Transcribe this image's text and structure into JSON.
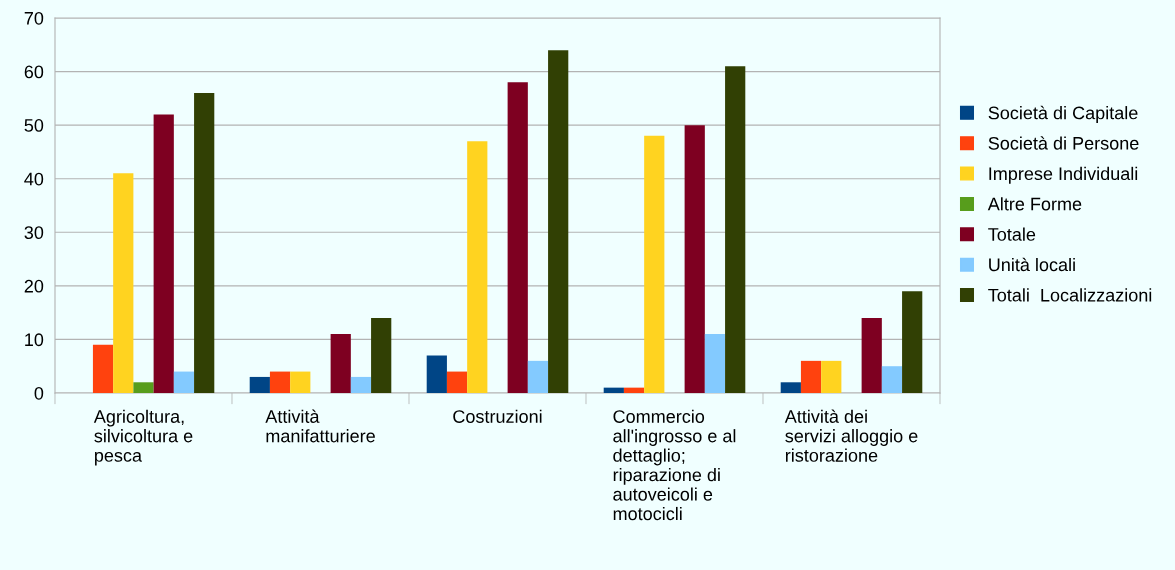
{
  "chart_data": {
    "type": "bar",
    "categories": [
      "Agricoltura,\nsilvicoltura e\npesca",
      "Attività\nmanifatturiere",
      "Costruzioni",
      "Commercio\nall'ingrosso e al\ndettaglio;\nriparazione di\nautoveicoli e\nmotocicli",
      "Attività dei\nservizi alloggio e\nristorazione"
    ],
    "series": [
      {
        "name": "Società di Capitale",
        "color": "#004586",
        "values": [
          0,
          3,
          7,
          1,
          2
        ]
      },
      {
        "name": "Società di Persone",
        "color": "#ff420e",
        "values": [
          9,
          4,
          4,
          1,
          6
        ]
      },
      {
        "name": "Imprese Individuali",
        "color": "#ffd320",
        "values": [
          41,
          4,
          47,
          48,
          6
        ]
      },
      {
        "name": "Altre Forme",
        "color": "#579d1c",
        "values": [
          2,
          0,
          0,
          0,
          0
        ]
      },
      {
        "name": "Totale",
        "color": "#7e0021",
        "values": [
          52,
          11,
          58,
          50,
          14
        ]
      },
      {
        "name": "Unità locali",
        "color": "#83caff",
        "values": [
          4,
          3,
          6,
          11,
          5
        ]
      },
      {
        "name": "Totali  Localizzazioni",
        "color": "#314004",
        "values": [
          56,
          14,
          64,
          61,
          19
        ]
      }
    ],
    "ylim": [
      0,
      70
    ],
    "yticks": [
      0,
      10,
      20,
      30,
      40,
      50,
      60,
      70
    ],
    "grid": "y",
    "legend": "right"
  }
}
